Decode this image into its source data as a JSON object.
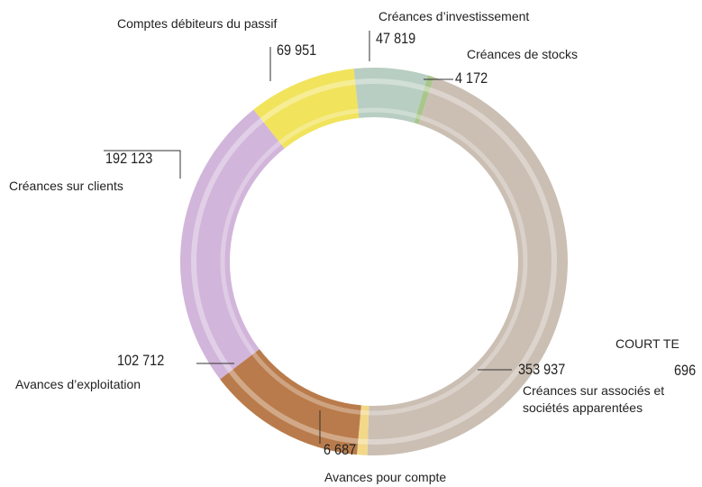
{
  "chart_data": {
    "type": "donut",
    "categories": [
      "Créances d’investissement",
      "Créances de stocks",
      "Créances sur associés et sociétés apparentées",
      "Avances pour compte",
      "Avances d’exploitation",
      "Créances sur clients",
      "Comptes débiteurs du passif"
    ],
    "values": [
      47819,
      4172,
      353937,
      6687,
      102712,
      192123,
      69951
    ],
    "value_labels": [
      "47 819",
      "4 172",
      "353 937",
      "6 687",
      "102 712",
      "192 123",
      "69 951"
    ],
    "colors": [
      "#b9cec2",
      "#a9c68c",
      "#cbbfb3",
      "#f2d888",
      "#b97b4b",
      "#d2b5da",
      "#f1e35c"
    ],
    "annotations": [
      "COURT TE",
      "696"
    ]
  }
}
